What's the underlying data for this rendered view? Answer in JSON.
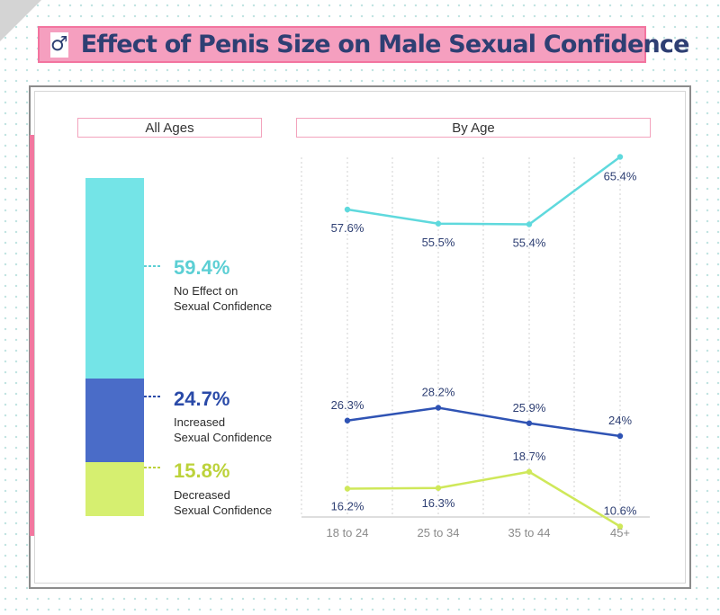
{
  "title": "Effect of Penis Size on Male Sexual Confidence",
  "icon": "male-symbol-icon",
  "colors": {
    "no_effect": "#74e4e7",
    "increased": "#4a6cc8",
    "decreased": "#d6ef70",
    "no_effect_text": "#5ccfd4",
    "increased_text": "#2a4aa8",
    "decreased_text": "#bcd23a",
    "line_no_effect": "#5fd9dd",
    "line_increased": "#2f53b4",
    "line_decreased": "#cfe85a"
  },
  "all_ages": {
    "label": "All Ages",
    "segments": [
      {
        "key": "no_effect",
        "value_label": "59.4%",
        "line1": "No Effect on",
        "line2": "Sexual Confidence"
      },
      {
        "key": "increased",
        "value_label": "24.7%",
        "line1": "Increased",
        "line2": "Sexual Confidence"
      },
      {
        "key": "decreased",
        "value_label": "15.8%",
        "line1": "Decreased",
        "line2": "Sexual Confidence"
      }
    ]
  },
  "by_age": {
    "label": "By Age"
  },
  "chart_data": [
    {
      "type": "bar",
      "title": "All Ages",
      "categories": [
        "No Effect on Sexual Confidence",
        "Increased Sexual Confidence",
        "Decreased Sexual Confidence"
      ],
      "values": [
        59.4,
        24.7,
        15.8
      ],
      "stacked": true
    },
    {
      "type": "line",
      "title": "By Age",
      "categories": [
        "18 to 24",
        "25 to 34",
        "35 to 44",
        "45+"
      ],
      "ylim": [
        0,
        80
      ],
      "grid": "vertical",
      "series": [
        {
          "name": "No Effect on Sexual Confidence",
          "key": "no_effect",
          "values": [
            57.6,
            55.5,
            55.4,
            65.4
          ],
          "labels": [
            "57.6%",
            "55.5%",
            "55.4%",
            "65.4%"
          ]
        },
        {
          "name": "Increased Sexual Confidence",
          "key": "increased",
          "values": [
            26.3,
            28.2,
            25.9,
            24
          ],
          "labels": [
            "26.3%",
            "28.2%",
            "25.9%",
            "24%"
          ]
        },
        {
          "name": "Decreased Sexual Confidence",
          "key": "decreased",
          "values": [
            16.2,
            16.3,
            18.7,
            10.6
          ],
          "labels": [
            "16.2%",
            "16.3%",
            "18.7%",
            "10.6%"
          ]
        }
      ]
    }
  ]
}
